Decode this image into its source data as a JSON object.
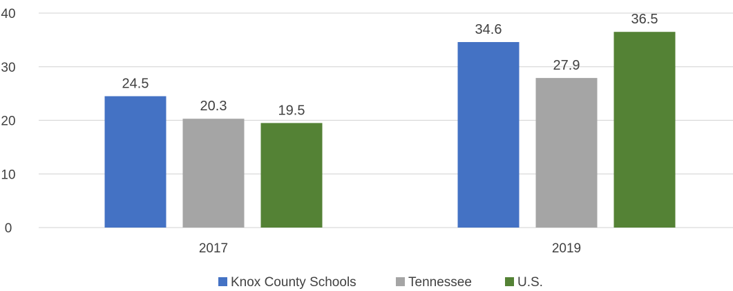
{
  "chart_data": {
    "type": "bar",
    "categories": [
      "2017",
      "2019"
    ],
    "series": [
      {
        "name": "Knox County Schools",
        "values": [
          24.5,
          34.6
        ],
        "color": "#4472C4"
      },
      {
        "name": "Tennessee",
        "values": [
          20.3,
          27.9
        ],
        "color": "#A5A5A5"
      },
      {
        "name": "U.S.",
        "values": [
          19.5,
          36.5
        ],
        "color": "#548235"
      }
    ],
    "title": "",
    "xlabel": "",
    "ylabel": "",
    "ylim": [
      0,
      40
    ],
    "yticks": [
      "0",
      "10",
      "20",
      "30",
      "40"
    ],
    "grid": true,
    "legend": "bottom",
    "data_labels": true
  }
}
